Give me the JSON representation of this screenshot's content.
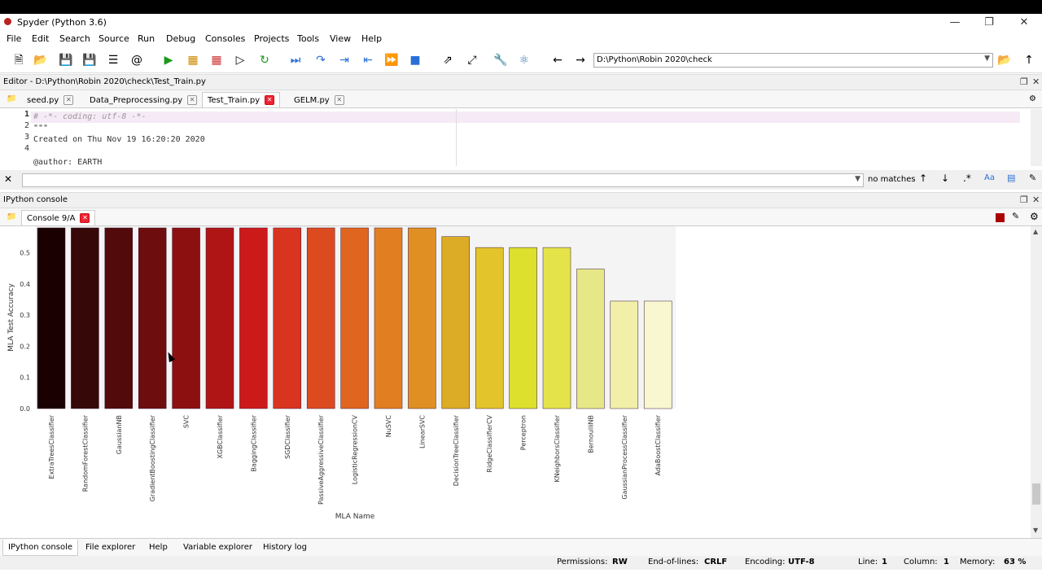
{
  "window": {
    "title": "Spyder (Python 3.6)"
  },
  "menu": [
    "File",
    "Edit",
    "Search",
    "Source",
    "Run",
    "Debug",
    "Consoles",
    "Projects",
    "Tools",
    "View",
    "Help"
  ],
  "path": {
    "value": "D:\\Python\\Robin 2020\\check"
  },
  "editor": {
    "header": "Editor - D:\\Python\\Robin 2020\\check\\Test_Train.py",
    "tabs": [
      "seed.py",
      "Data_Preprocessing.py",
      "Test_Train.py",
      "GELM.py"
    ],
    "active_tab": "Test_Train.py",
    "line_numbers": [
      "1",
      "2",
      "3",
      "4",
      ""
    ],
    "lines": [
      "# -*- coding: utf-8 -*-",
      "\"\"\"",
      "Created on Thu Nov 19 16:20:20 2020",
      "",
      "@author: EARTH"
    ]
  },
  "find": {
    "status": "no matches"
  },
  "console": {
    "header": "IPython console",
    "tab": "Console 9/A"
  },
  "chart_data": {
    "type": "bar",
    "xlabel": "MLA Name",
    "ylabel": "MLA Test Accuracy",
    "ylim": [
      0,
      0.58
    ],
    "yticks": [
      "0.0",
      "0.1",
      "0.2",
      "0.3",
      "0.4",
      "0.5"
    ],
    "categories": [
      "ExtraTreesClassifier",
      "RandomForestClassifier",
      "GaussianNB",
      "GradientBoostingClassifier",
      "SVC",
      "XGBClassifier",
      "BaggingClassifier",
      "SGDClassifier",
      "PassiveAggressiveClassifier",
      "LogisticRegressionCV",
      "NuSVC",
      "LinearSVC",
      "DecisionTreeClassifier",
      "RidgeClassifierCV",
      "Perceptron",
      "KNeighborsClassifier",
      "BernoulliNB",
      "GaussianProcessClassifier",
      "AdaBoostClassifier"
    ],
    "values": [
      0.58,
      0.58,
      0.58,
      0.58,
      0.58,
      0.58,
      0.58,
      0.58,
      0.58,
      0.58,
      0.58,
      0.58,
      0.552,
      0.517,
      0.517,
      0.517,
      0.448,
      0.345,
      0.345
    ],
    "colors": [
      "#1a0000",
      "#360808",
      "#520a0a",
      "#6e0d0d",
      "#8d1010",
      "#b01515",
      "#cc1a1a",
      "#d9341f",
      "#dc4b20",
      "#e06620",
      "#e27e22",
      "#e08f23",
      "#dcac26",
      "#e3c42b",
      "#dde02c",
      "#e4e34a",
      "#e6e887",
      "#f2efa8",
      "#f8f7cf"
    ]
  },
  "bottom_tabs": [
    "IPython console",
    "File explorer",
    "Help",
    "Variable explorer",
    "History log"
  ],
  "status": {
    "permissions_label": "Permissions:",
    "permissions": "RW",
    "eol_label": "End-of-lines:",
    "eol": "CRLF",
    "encoding_label": "Encoding:",
    "encoding": "UTF-8",
    "line_label": "Line:",
    "line": "1",
    "column_label": "Column:",
    "column": "1",
    "memory_label": "Memory:",
    "memory": "63 %"
  }
}
